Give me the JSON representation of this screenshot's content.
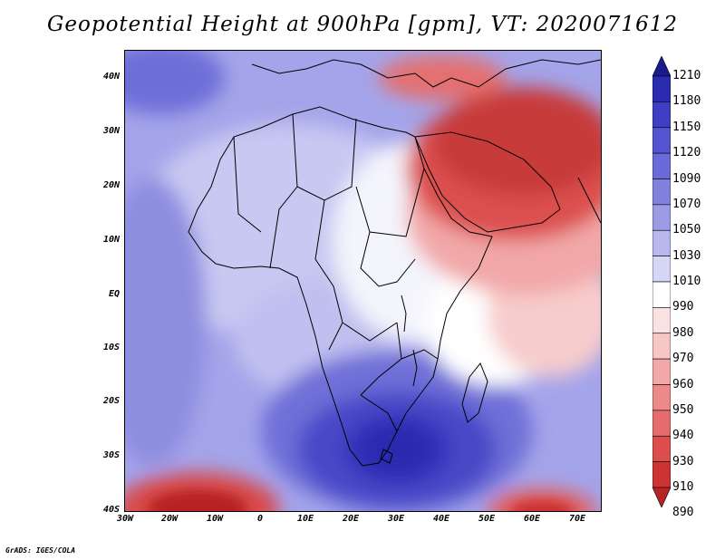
{
  "title": "Geopotential Height at 900hPa [gpm], VT: 2020071612",
  "credit": "GrADS: IGES/COLA",
  "lat_labels": [
    "40N",
    "30N",
    "20N",
    "10N",
    "EQ",
    "10S",
    "20S",
    "30S",
    "40S"
  ],
  "lon_labels": [
    "30W",
    "20W",
    "10W",
    "0",
    "10E",
    "20E",
    "30E",
    "40E",
    "50E",
    "60E",
    "70E"
  ],
  "colorbar": {
    "levels": [
      "1210",
      "1180",
      "1150",
      "1120",
      "1090",
      "1070",
      "1050",
      "1030",
      "1010",
      "990",
      "980",
      "970",
      "960",
      "950",
      "940",
      "930",
      "910",
      "890"
    ],
    "colors": [
      "#1a1a8c",
      "#2b2bb0",
      "#3f3fc4",
      "#5454d0",
      "#6a6ad8",
      "#8282de",
      "#9c9ce6",
      "#b8b8ee",
      "#d6d6f6",
      "#ffffff",
      "#fbe2e2",
      "#f7c6c6",
      "#f2a8a8",
      "#ec8a8a",
      "#e46c6c",
      "#dc4e4e",
      "#cc3333",
      "#b82424"
    ]
  },
  "map_field": {
    "variable": "Geopotential Height",
    "level": "900hPa",
    "units": "gpm",
    "valid_time": "2020071612"
  }
}
